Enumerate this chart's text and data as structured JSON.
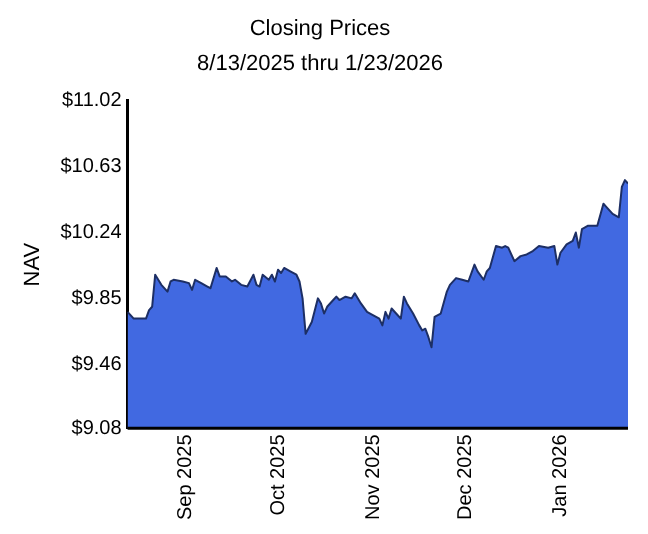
{
  "chart_data": {
    "type": "area",
    "title": "Closing Prices",
    "subtitle": "8/13/2025 thru 1/23/2026",
    "ylabel": "NAV",
    "xlim": [
      "2025-08-13",
      "2026-01-23"
    ],
    "xticks": [
      {
        "value": "2025-09-01",
        "label": "Sep 2025"
      },
      {
        "value": "2025-10-01",
        "label": "Oct 2025"
      },
      {
        "value": "2025-11-01",
        "label": "Nov 2025"
      },
      {
        "value": "2025-12-01",
        "label": "Dec 2025"
      },
      {
        "value": "2026-01-01",
        "label": "Jan 2026"
      }
    ],
    "ylim": [
      9.08,
      11.02
    ],
    "yticks": [
      {
        "value": 9.08,
        "label": "$9.08"
      },
      {
        "value": 9.46,
        "label": "$9.46"
      },
      {
        "value": 9.85,
        "label": "$9.85"
      },
      {
        "value": 10.24,
        "label": "$10.24"
      },
      {
        "value": 10.63,
        "label": "$10.63"
      },
      {
        "value": 11.02,
        "label": "$11.02"
      }
    ],
    "grid": false,
    "legend": false,
    "x": [
      "2025-08-13",
      "2025-08-15",
      "2025-08-19",
      "2025-08-20",
      "2025-08-21",
      "2025-08-22",
      "2025-08-24",
      "2025-08-26",
      "2025-08-27",
      "2025-08-28",
      "2025-08-31",
      "2025-09-02",
      "2025-09-03",
      "2025-09-04",
      "2025-09-06",
      "2025-09-08",
      "2025-09-09",
      "2025-09-11",
      "2025-09-12",
      "2025-09-14",
      "2025-09-16",
      "2025-09-17",
      "2025-09-19",
      "2025-09-21",
      "2025-09-23",
      "2025-09-24",
      "2025-09-25",
      "2025-09-26",
      "2025-09-28",
      "2025-09-29",
      "2025-09-30",
      "2025-10-01",
      "2025-10-02",
      "2025-10-03",
      "2025-10-05",
      "2025-10-07",
      "2025-10-08",
      "2025-10-09",
      "2025-10-10",
      "2025-10-12",
      "2025-10-14",
      "2025-10-15",
      "2025-10-16",
      "2025-10-17",
      "2025-10-19",
      "2025-10-20",
      "2025-10-21",
      "2025-10-23",
      "2025-10-25",
      "2025-10-26",
      "2025-10-28",
      "2025-10-30",
      "2025-10-31",
      "2025-11-03",
      "2025-11-04",
      "2025-11-05",
      "2025-11-06",
      "2025-11-07",
      "2025-11-09",
      "2025-11-10",
      "2025-11-11",
      "2025-11-12",
      "2025-11-14",
      "2025-11-16",
      "2025-11-17",
      "2025-11-18",
      "2025-11-19",
      "2025-11-20",
      "2025-11-21",
      "2025-11-23",
      "2025-11-25",
      "2025-11-26",
      "2025-11-28",
      "2025-11-30",
      "2025-12-02",
      "2025-12-04",
      "2025-12-05",
      "2025-12-07",
      "2025-12-08",
      "2025-12-09",
      "2025-12-11",
      "2025-12-13",
      "2025-12-14",
      "2025-12-15",
      "2025-12-17",
      "2025-12-19",
      "2025-12-21",
      "2025-12-23",
      "2025-12-25",
      "2025-12-28",
      "2025-12-30",
      "2025-12-31",
      "2026-01-01",
      "2026-01-03",
      "2026-01-05",
      "2026-01-06",
      "2026-01-07",
      "2026-01-08",
      "2026-01-10",
      "2026-01-13",
      "2026-01-15",
      "2026-01-16",
      "2026-01-18",
      "2026-01-20",
      "2026-01-21",
      "2026-01-22",
      "2026-01-23"
    ],
    "series": [
      {
        "color": "#4169e1",
        "values": [
          9.77,
          9.73,
          9.73,
          9.78,
          9.8,
          9.99,
          9.93,
          9.89,
          9.95,
          9.96,
          9.95,
          9.94,
          9.9,
          9.96,
          9.94,
          9.92,
          9.91,
          10.03,
          9.98,
          9.98,
          9.95,
          9.96,
          9.93,
          9.92,
          9.99,
          9.93,
          9.92,
          9.99,
          9.96,
          9.99,
          9.95,
          10.02,
          10.0,
          10.03,
          10.01,
          9.99,
          9.95,
          9.85,
          9.64,
          9.71,
          9.85,
          9.82,
          9.76,
          9.8,
          9.84,
          9.86,
          9.84,
          9.86,
          9.85,
          9.88,
          9.82,
          9.77,
          9.76,
          9.73,
          9.69,
          9.77,
          9.73,
          9.79,
          9.75,
          9.73,
          9.86,
          9.82,
          9.76,
          9.69,
          9.66,
          9.67,
          9.62,
          9.56,
          9.74,
          9.76,
          9.89,
          9.93,
          9.97,
          9.96,
          9.95,
          10.05,
          10.01,
          9.96,
          10.01,
          10.03,
          10.16,
          10.15,
          10.16,
          10.15,
          10.07,
          10.1,
          10.11,
          10.13,
          10.16,
          10.15,
          10.16,
          10.05,
          10.12,
          10.17,
          10.19,
          10.24,
          10.15,
          10.26,
          10.28,
          10.28,
          10.41,
          10.39,
          10.35,
          10.33,
          10.51,
          10.55,
          10.53
        ]
      }
    ]
  }
}
